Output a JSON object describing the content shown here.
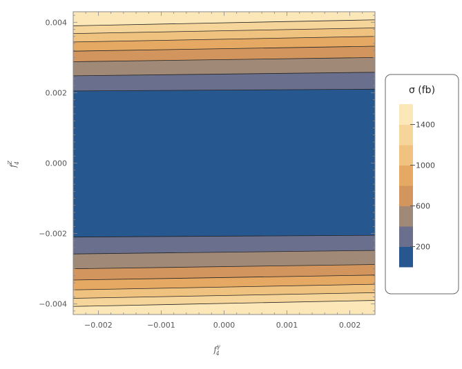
{
  "chart_data": {
    "type": "contour",
    "xlabel": "f",
    "xlabel_sub": "4",
    "xlabel_sup": "γ",
    "ylabel": "f",
    "ylabel_sub": "4",
    "ylabel_sup": "Z",
    "xlim": [
      -0.0024,
      0.0024
    ],
    "ylim": [
      -0.0043,
      0.0043
    ],
    "x_ticks": [
      -0.002,
      -0.001,
      0.0,
      0.001,
      0.002
    ],
    "x_tick_labels": [
      "−0.002",
      "−0.001",
      "0.000",
      "0.001",
      "0.002"
    ],
    "y_ticks": [
      -0.004,
      -0.002,
      0.0,
      0.002,
      0.004
    ],
    "y_tick_labels": [
      "−0.004",
      "−0.002",
      "0.000",
      "0.002",
      "0.004"
    ],
    "contour_levels": [
      200,
      400,
      600,
      800,
      1000,
      1200,
      1400
    ],
    "contour_lines": [
      {
        "level": 200,
        "top": [
          0.00205,
          0.0021
        ],
        "bottom": [
          -0.0021,
          -0.00205
        ]
      },
      {
        "level": 400,
        "top": [
          0.00248,
          0.00258
        ],
        "bottom": [
          -0.00258,
          -0.00248
        ]
      },
      {
        "level": 600,
        "top": [
          0.00288,
          0.003
        ],
        "bottom": [
          -0.003,
          -0.00288
        ]
      },
      {
        "level": 800,
        "top": [
          0.00318,
          0.00332
        ],
        "bottom": [
          -0.00332,
          -0.00318
        ]
      },
      {
        "level": 1000,
        "top": [
          0.00344,
          0.0036
        ],
        "bottom": [
          -0.0036,
          -0.00344
        ]
      },
      {
        "level": 1200,
        "top": [
          0.00368,
          0.00384
        ],
        "bottom": [
          -0.00384,
          -0.00368
        ]
      },
      {
        "level": 1400,
        "top": [
          0.0039,
          0.00407
        ],
        "bottom": [
          -0.00407,
          -0.0039
        ]
      }
    ],
    "band_colors": [
      "#27578f",
      "#6b6f8e",
      "#a08a77",
      "#d2955e",
      "#e5a963",
      "#f0c27f",
      "#f6d59b",
      "#fbe7b8"
    ],
    "legend": {
      "title": "σ (fb)",
      "tick_values": [
        200,
        600,
        1000,
        1400
      ],
      "tick_labels": [
        "200",
        "600",
        "1000",
        "1400"
      ],
      "placement": "right"
    },
    "grid": false
  }
}
